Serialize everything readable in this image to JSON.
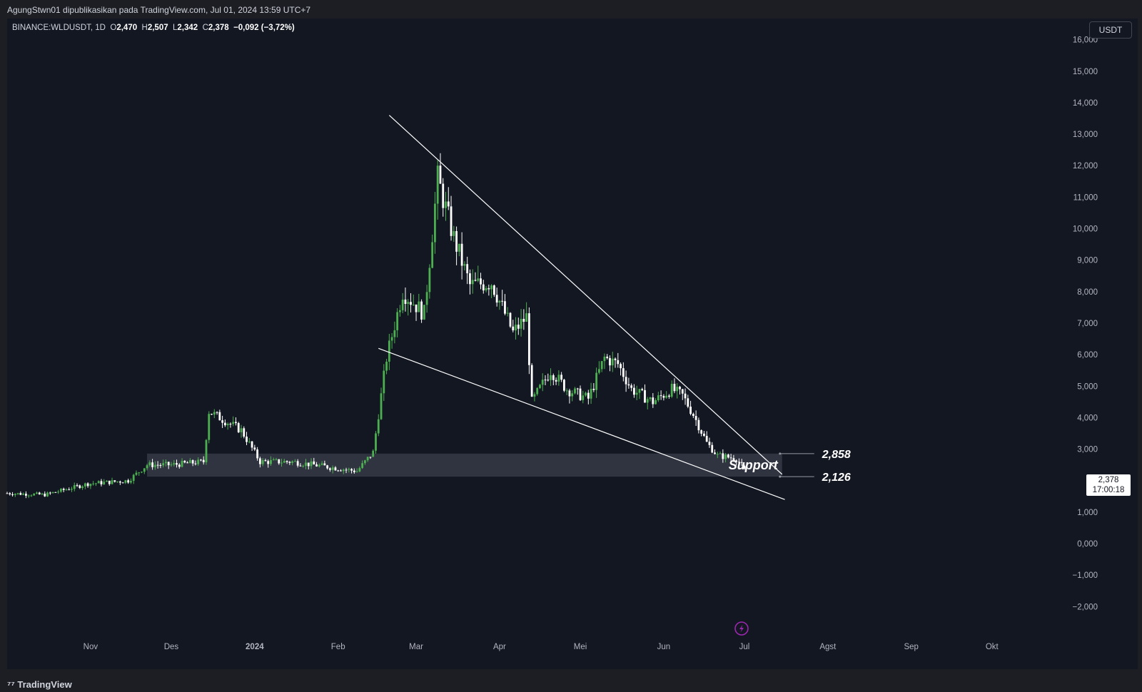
{
  "header": {
    "publish_info": "AgungStwn01 dipublikasikan pada TradingView.com, Jul 01, 2024 13:59 UTC+7"
  },
  "legend": {
    "symbol": "BINANCE:WLDUSDT, 1D",
    "open_label": "O",
    "open": "2,470",
    "high_label": "H",
    "high": "2,507",
    "low_label": "L",
    "low": "2,342",
    "close_label": "C",
    "close": "2,378",
    "change": "−0,092 (−3,72%)"
  },
  "currency_button": "USDT",
  "last_price": {
    "value": "2,378",
    "countdown": "17:00:18"
  },
  "footer": {
    "brand": "TradingView"
  },
  "colors": {
    "up": "#4caf50",
    "down": "#ffffff",
    "background": "#131722",
    "zone": "#363a45",
    "lines": "#ffffff"
  },
  "chart_data": {
    "type": "candlestick",
    "y_axis": {
      "ticks": [
        16000,
        15000,
        14000,
        13000,
        12000,
        11000,
        10000,
        9000,
        8000,
        7000,
        6000,
        5000,
        4000,
        3000,
        1000,
        0,
        -1000,
        -2000
      ],
      "tick_labels": [
        "16,000",
        "15,000",
        "14,000",
        "13,000",
        "12,000",
        "11,000",
        "10,000",
        "9,000",
        "8,000",
        "7,000",
        "6,000",
        "5,000",
        "4,000",
        "3,000",
        "1,000",
        "0,000",
        "−1,000",
        "−2,000"
      ]
    },
    "x_axis": {
      "labels": [
        "Nov",
        "Des",
        "2024",
        "Feb",
        "Mar",
        "Apr",
        "Mei",
        "Jun",
        "Jul",
        "Agst",
        "Sep",
        "Okt"
      ],
      "dates": [
        "2023-11-01",
        "2023-12-01",
        "2024-01-01",
        "2024-02-01",
        "2024-03-01",
        "2024-04-01",
        "2024-05-01",
        "2024-06-01",
        "2024-07-01",
        "2024-08-01",
        "2024-09-01",
        "2024-10-01"
      ],
      "bold": [
        "2024"
      ]
    },
    "price_path": [
      [
        "2023-10-01",
        1.6
      ],
      [
        "2023-10-15",
        1.55
      ],
      [
        "2023-10-31",
        1.9
      ],
      [
        "2023-11-15",
        2.0
      ],
      [
        "2023-11-22",
        2.5
      ],
      [
        "2023-12-01",
        2.5
      ],
      [
        "2023-12-13",
        2.6
      ],
      [
        "2023-12-15",
        4.2
      ],
      [
        "2023-12-27",
        3.6
      ],
      [
        "2024-01-03",
        2.6
      ],
      [
        "2024-01-15",
        2.6
      ],
      [
        "2024-01-31",
        2.4
      ],
      [
        "2024-02-08",
        2.3
      ],
      [
        "2024-02-14",
        2.9
      ],
      [
        "2024-02-19",
        5.9
      ],
      [
        "2024-02-25",
        8.0
      ],
      [
        "2024-03-04",
        7.3
      ],
      [
        "2024-03-09",
        11.6
      ],
      [
        "2024-03-15",
        9.7
      ],
      [
        "2024-03-21",
        8.2
      ],
      [
        "2024-03-29",
        8.3
      ],
      [
        "2024-04-06",
        6.7
      ],
      [
        "2024-04-11",
        7.2
      ],
      [
        "2024-04-13",
        4.5
      ],
      [
        "2024-04-20",
        5.5
      ],
      [
        "2024-04-26",
        4.9
      ],
      [
        "2024-05-04",
        4.6
      ],
      [
        "2024-05-10",
        5.9
      ],
      [
        "2024-05-15",
        5.7
      ],
      [
        "2024-05-20",
        4.9
      ],
      [
        "2024-05-28",
        4.5
      ],
      [
        "2024-06-04",
        4.9
      ],
      [
        "2024-06-08",
        4.7
      ],
      [
        "2024-06-12",
        4.1
      ],
      [
        "2024-06-17",
        3.2
      ],
      [
        "2024-06-21",
        2.8
      ],
      [
        "2024-06-28",
        2.7
      ],
      [
        "2024-07-01",
        2.378
      ]
    ],
    "last_candle": {
      "open": 2.47,
      "high": 2.507,
      "low": 2.342,
      "close": 2.378
    },
    "support_zone": {
      "label": "Support",
      "upper": 2.858,
      "lower": 2.126,
      "upper_label": "2,858",
      "lower_label": "2,126",
      "from": "2023-11-22",
      "to": "2024-07-15"
    },
    "trendlines": [
      {
        "name": "upper-trendline",
        "points": [
          [
            "2024-02-20",
            13.6
          ],
          [
            "2024-07-15",
            2.2
          ]
        ]
      },
      {
        "name": "lower-trendline",
        "points": [
          [
            "2024-02-16",
            6.2
          ],
          [
            "2024-07-16",
            1.4
          ]
        ]
      }
    ]
  }
}
